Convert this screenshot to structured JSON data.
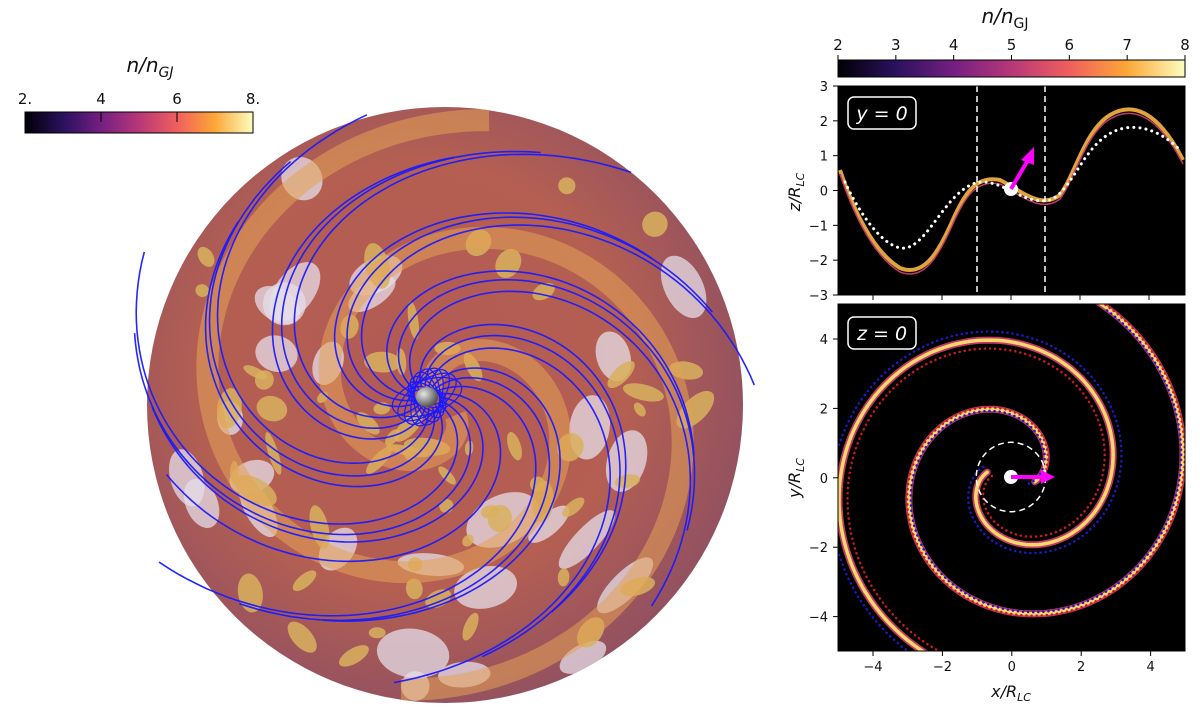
{
  "left_figure": {
    "colorbar": {
      "label_base": "n/n",
      "label_sub": "GJ",
      "ticks": [
        "2.",
        "4",
        "6",
        "8."
      ],
      "colors": [
        "#000004",
        "#2c115f",
        "#721f81",
        "#b73779",
        "#f1605d",
        "#fca636",
        "#fcfdbf"
      ]
    },
    "sphere": {
      "base_color": "#c26a4a",
      "patch_color": "#d8b15e",
      "haze_color": "#e6dde8",
      "field_line_color": "#1a1aff",
      "star_color": "#8c8c8c"
    }
  },
  "right_figure": {
    "colorbar": {
      "label_base": "n/n",
      "label_sub": "GJ",
      "ticks": [
        "2",
        "3",
        "4",
        "5",
        "6",
        "7",
        "8"
      ],
      "range": [
        2,
        8
      ]
    },
    "top_panel": {
      "label": "y = 0",
      "xlim": [
        -5,
        5
      ],
      "ylim": [
        -3,
        3
      ],
      "yticks": [
        "3",
        "2",
        "1",
        "0",
        "−1",
        "−2",
        "−3"
      ],
      "ylabel_base": "z/R",
      "ylabel_sub": "LC",
      "vlines_x": [
        -1,
        1
      ],
      "arrow_color": "#ff00ff"
    },
    "bottom_panel": {
      "label": "z = 0",
      "xlim": [
        -5,
        5
      ],
      "ylim": [
        -5,
        5
      ],
      "xticks": [
        "−4",
        "−2",
        "0",
        "2",
        "4"
      ],
      "yticks": [
        "4",
        "2",
        "0",
        "−2",
        "−4"
      ],
      "xlabel_base": "x/R",
      "xlabel_sub": "LC",
      "ylabel_base": "y/R",
      "ylabel_sub": "LC",
      "circle_radius": 1,
      "dotted_colors": [
        "#1a1acc",
        "#cc1a1a"
      ],
      "arrow_color": "#ff00ff"
    }
  }
}
